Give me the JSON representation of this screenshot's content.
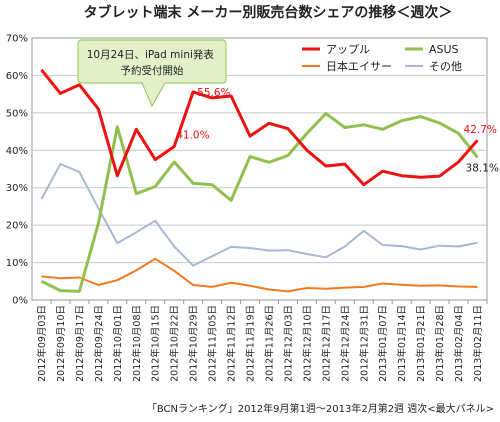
{
  "chart_data": {
    "type": "line",
    "title": "タブレット端末 メーカー別販売台数シェアの推移＜週次＞",
    "footer": "「BCNランキング」2012年9月第1週～2013年2月第2週 週次<最大パネル>",
    "ylim": [
      0,
      70
    ],
    "yticks": [
      "0%",
      "10%",
      "20%",
      "30%",
      "40%",
      "50%",
      "60%",
      "70%"
    ],
    "grid": true,
    "legend_position": "top-right",
    "categories": [
      "2012年09月03日",
      "2012年09月10日",
      "2012年09月17日",
      "2012年09月24日",
      "2012年10月01日",
      "2012年10月08日",
      "2012年10月15日",
      "2012年10月22日",
      "2012年10月29日",
      "2012年11月05日",
      "2012年11月12日",
      "2012年11月19日",
      "2012年11月26日",
      "2012年12月03日",
      "2012年12月10日",
      "2012年12月17日",
      "2012年12月24日",
      "2012年12月31日",
      "2013年01月07日",
      "2013年01月14日",
      "2013年01月21日",
      "2013年01月28日",
      "2013年02月04日",
      "2013年02月11日"
    ],
    "series": [
      {
        "name": "アップル",
        "color": "#ee1111",
        "width": 3,
        "values": [
          61.5,
          55.2,
          57.5,
          51.0,
          33.2,
          45.6,
          37.5,
          41.0,
          55.6,
          54.0,
          54.5,
          43.8,
          47.2,
          45.8,
          40.0,
          35.8,
          36.3,
          30.8,
          34.4,
          33.2,
          32.8,
          33.1,
          36.9,
          42.7
        ]
      },
      {
        "name": "ASUS",
        "color": "#92c050",
        "width": 3,
        "values": [
          5.0,
          2.5,
          2.3,
          20.5,
          46.3,
          28.4,
          30.3,
          36.9,
          31.2,
          30.8,
          26.6,
          38.3,
          36.8,
          38.6,
          44.5,
          49.8,
          46.1,
          46.8,
          45.6,
          47.9,
          49.0,
          47.3,
          44.5,
          38.1
        ]
      },
      {
        "name": "日本エイサー",
        "color": "#f07a1e",
        "width": 2,
        "values": [
          6.3,
          5.8,
          6.0,
          4.0,
          5.3,
          7.9,
          11.0,
          7.8,
          4.0,
          3.5,
          4.6,
          3.8,
          2.8,
          2.3,
          3.2,
          3.0,
          3.3,
          3.5,
          4.4,
          4.1,
          3.8,
          3.9,
          3.6,
          3.5
        ]
      },
      {
        "name": "その他",
        "color": "#a9b8d2",
        "width": 2,
        "values": [
          27.0,
          36.3,
          34.2,
          24.5,
          15.2,
          18.1,
          21.2,
          14.3,
          9.2,
          11.7,
          14.2,
          13.9,
          13.2,
          13.3,
          12.3,
          11.4,
          14.3,
          18.5,
          14.7,
          14.4,
          13.5,
          14.5,
          14.3,
          15.3
        ]
      }
    ],
    "annotations": {
      "callout": "10月24日、iPad mini発表\n予約受付開始",
      "labels": [
        {
          "text": "41.0%",
          "series": 0,
          "index": 7,
          "color": "#ee1111"
        },
        {
          "text": "55.6%",
          "series": 0,
          "index": 8,
          "color": "#ee1111"
        },
        {
          "text": "42.7%",
          "series": 0,
          "index": 23,
          "color": "#ee1111"
        },
        {
          "text": "38.1%",
          "series": 1,
          "index": 23,
          "color": "#222222"
        }
      ]
    }
  }
}
